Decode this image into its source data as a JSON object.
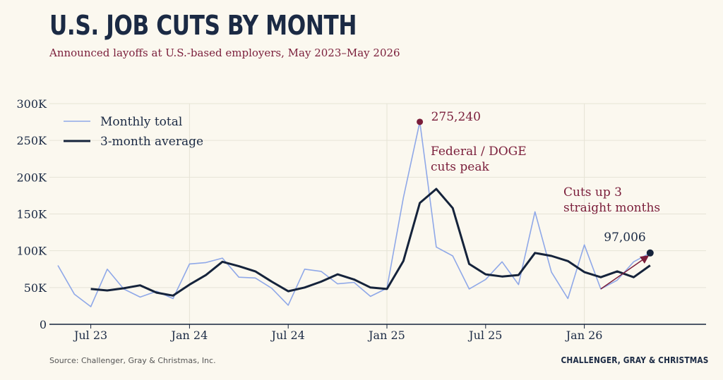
{
  "title": "U.S. JOB CUTS BY MONTH",
  "subtitle": "Announced layoffs at U.S.-based employers, May 2023–May 2026",
  "source": "Source: Challenger, Gray & Christmas, Inc.",
  "brand": "CHALLENGER, GRAY & CHRISTMAS",
  "colors": {
    "monthly": "#8fa8e8",
    "average": "#15233b",
    "accent": "#7a1d3a",
    "grid": "#e6e3d6",
    "text": "#1b2a44"
  },
  "chart_data": {
    "type": "line",
    "x": [
      "2023-05",
      "2023-06",
      "2023-07",
      "2023-08",
      "2023-09",
      "2023-10",
      "2023-11",
      "2023-12",
      "2024-01",
      "2024-02",
      "2024-03",
      "2024-04",
      "2024-05",
      "2024-06",
      "2024-07",
      "2024-08",
      "2024-09",
      "2024-10",
      "2024-11",
      "2024-12",
      "2025-01",
      "2025-02",
      "2025-03",
      "2025-04",
      "2025-05",
      "2025-06",
      "2025-07",
      "2025-08",
      "2025-09",
      "2025-10",
      "2025-11",
      "2025-12",
      "2026-01",
      "2026-02",
      "2026-03",
      "2026-04",
      "2026-05"
    ],
    "xticks": [
      {
        "x": "2023-07",
        "label": "Jul 23"
      },
      {
        "x": "2024-01",
        "label": "Jan 24"
      },
      {
        "x": "2024-07",
        "label": "Jul 24"
      },
      {
        "x": "2025-01",
        "label": "Jan 25"
      },
      {
        "x": "2025-07",
        "label": "Jul 25"
      },
      {
        "x": "2026-01",
        "label": "Jan 26"
      }
    ],
    "vgrid": [
      "2024-01",
      "2025-01",
      "2026-01"
    ],
    "yticks": [
      0,
      50000,
      100000,
      150000,
      200000,
      250000,
      300000
    ],
    "ytick_labels": [
      "0",
      "50K",
      "100K",
      "150K",
      "200K",
      "250K",
      "300K"
    ],
    "ylim": [
      0,
      300000
    ],
    "series": [
      {
        "name": "Monthly total",
        "values": [
          80000,
          41000,
          24000,
          75000,
          48000,
          37000,
          45000,
          35000,
          82000,
          84000,
          90000,
          64000,
          63000,
          49000,
          26000,
          75000,
          72000,
          55000,
          57000,
          38000,
          49000,
          172000,
          275240,
          105000,
          93000,
          48000,
          61000,
          85000,
          54000,
          153000,
          71000,
          35000,
          108000,
          48000,
          60000,
          85000,
          97006
        ]
      },
      {
        "name": "3-month average",
        "values": [
          null,
          null,
          48000,
          46000,
          49000,
          53000,
          43000,
          39000,
          54000,
          67000,
          85000,
          79000,
          72000,
          58000,
          45000,
          50000,
          58000,
          68000,
          61000,
          50000,
          48000,
          86000,
          165000,
          184000,
          158000,
          82000,
          68000,
          65000,
          67000,
          97000,
          93000,
          86000,
          71000,
          64000,
          72000,
          64000,
          80000
        ]
      }
    ],
    "annotations": {
      "peak": {
        "x": "2025-03",
        "value": 275240,
        "label": "275,240",
        "note": [
          "Federal / DOGE",
          "cuts peak"
        ]
      },
      "last": {
        "x": "2026-05",
        "value": 97006,
        "label": "97,006"
      },
      "trend": {
        "from_x": "2026-02",
        "from_value": 48000,
        "to_x": "2026-05",
        "to_value": 95000,
        "note": [
          "Cuts up 3",
          "straight months"
        ]
      }
    },
    "legend": "top-left"
  }
}
